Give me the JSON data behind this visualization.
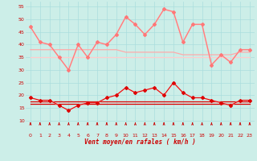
{
  "xlabel": "Vent moyen/en rafales ( km/h )",
  "background_color": "#cceee8",
  "grid_color": "#aadddd",
  "x_ticks": [
    0,
    1,
    2,
    3,
    4,
    5,
    6,
    7,
    8,
    9,
    10,
    11,
    12,
    13,
    14,
    15,
    16,
    17,
    18,
    19,
    20,
    21,
    22,
    23
  ],
  "y_ticks": [
    10,
    15,
    20,
    25,
    30,
    35,
    40,
    45,
    50,
    55
  ],
  "ylim": [
    8,
    57
  ],
  "xlim": [
    -0.5,
    23.5
  ],
  "line_gust_light": {
    "color": "#ffaaaa",
    "values": [
      47,
      41,
      40,
      35,
      30,
      40,
      35,
      41,
      40,
      44,
      51,
      48,
      44,
      48,
      54,
      53,
      41,
      48,
      48,
      32,
      36,
      33,
      38,
      38
    ]
  },
  "line_gust_dark": {
    "color": "#ff7777",
    "values": [
      47,
      41,
      40,
      35,
      30,
      40,
      35,
      41,
      40,
      44,
      51,
      48,
      44,
      48,
      54,
      53,
      41,
      48,
      48,
      32,
      36,
      33,
      38,
      38
    ]
  },
  "line_avg_light": {
    "color": "#ffaaaa",
    "values": [
      19,
      18,
      18,
      16,
      14,
      16,
      17,
      17,
      19,
      20,
      23,
      21,
      22,
      23,
      20,
      25,
      21,
      19,
      19,
      18,
      17,
      16,
      18,
      18
    ]
  },
  "line_avg_dark": {
    "color": "#dd0000",
    "values": [
      19,
      18,
      18,
      16,
      14,
      16,
      17,
      17,
      19,
      20,
      23,
      21,
      22,
      23,
      20,
      25,
      21,
      19,
      19,
      18,
      17,
      16,
      18,
      18
    ]
  },
  "line_flat_upper1": {
    "color": "#ffaaaa",
    "values": [
      38,
      38,
      38,
      38,
      38,
      38,
      38,
      38,
      38,
      38,
      37,
      37,
      37,
      37,
      37,
      37,
      36,
      36,
      36,
      36,
      36,
      36,
      37,
      37
    ]
  },
  "line_flat_upper2": {
    "color": "#ffcccc",
    "values": [
      35,
      35,
      35,
      35,
      35,
      35,
      35,
      35,
      35,
      35,
      35,
      35,
      35,
      35,
      35,
      35,
      35,
      35,
      35,
      35,
      35,
      35,
      35,
      35
    ]
  },
  "line_flat_lower1": {
    "color": "#dd0000",
    "values": [
      17.5,
      17.5,
      17.5,
      17.5,
      17.5,
      17.5,
      17.5,
      17.5,
      17.5,
      17.5,
      17.5,
      17.5,
      17.5,
      17.5,
      17.5,
      17.5,
      17.5,
      17.5,
      17.5,
      17.5,
      17.5,
      17.5,
      17.5,
      17.5
    ]
  },
  "line_flat_lower2": {
    "color": "#dd0000",
    "values": [
      16.5,
      16.5,
      16.5,
      16.5,
      16.5,
      16.5,
      16.5,
      16.5,
      16.5,
      16.5,
      16.5,
      16.5,
      16.5,
      16.5,
      16.5,
      16.5,
      16.5,
      16.5,
      16.5,
      16.5,
      16.5,
      16.5,
      16.5,
      16.5
    ]
  },
  "arrow_color": "#cc0000"
}
